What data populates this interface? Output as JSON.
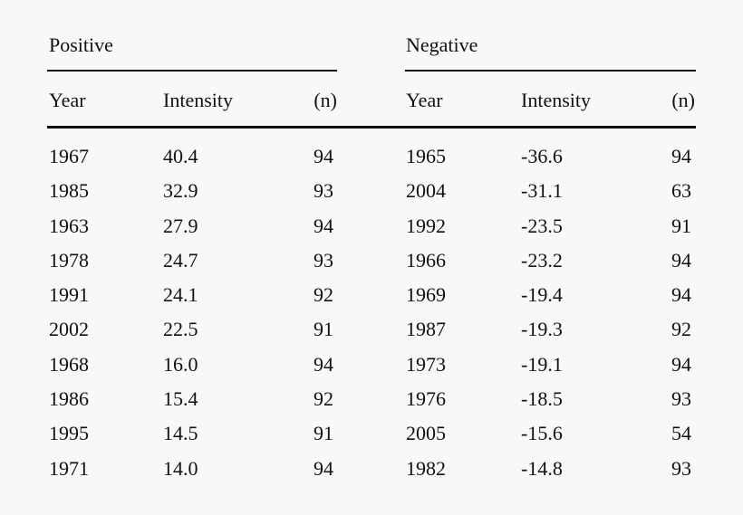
{
  "groups": {
    "positive": "Positive",
    "negative": "Negative"
  },
  "columns": {
    "year": "Year",
    "intensity": "Intensity",
    "n": "(n)"
  },
  "rows": [
    {
      "pos_year": "1967",
      "pos_intensity": "40.4",
      "pos_n": "94",
      "neg_year": "1965",
      "neg_intensity": "-36.6",
      "neg_n": "94"
    },
    {
      "pos_year": "1985",
      "pos_intensity": "32.9",
      "pos_n": "93",
      "neg_year": "2004",
      "neg_intensity": "-31.1",
      "neg_n": "63"
    },
    {
      "pos_year": "1963",
      "pos_intensity": "27.9",
      "pos_n": "94",
      "neg_year": "1992",
      "neg_intensity": "-23.5",
      "neg_n": "91"
    },
    {
      "pos_year": "1978",
      "pos_intensity": "24.7",
      "pos_n": "93",
      "neg_year": "1966",
      "neg_intensity": "-23.2",
      "neg_n": "94"
    },
    {
      "pos_year": "1991",
      "pos_intensity": "24.1",
      "pos_n": "92",
      "neg_year": "1969",
      "neg_intensity": "-19.4",
      "neg_n": "94"
    },
    {
      "pos_year": "2002",
      "pos_intensity": "22.5",
      "pos_n": "91",
      "neg_year": "1987",
      "neg_intensity": "-19.3",
      "neg_n": "92"
    },
    {
      "pos_year": "1968",
      "pos_intensity": "16.0",
      "pos_n": "94",
      "neg_year": "1973",
      "neg_intensity": "-19.1",
      "neg_n": "94"
    },
    {
      "pos_year": "1986",
      "pos_intensity": "15.4",
      "pos_n": "92",
      "neg_year": "1976",
      "neg_intensity": "-18.5",
      "neg_n": "93"
    },
    {
      "pos_year": "1995",
      "pos_intensity": "14.5",
      "pos_n": "91",
      "neg_year": "2005",
      "neg_intensity": "-15.6",
      "neg_n": "54"
    },
    {
      "pos_year": "1971",
      "pos_intensity": "14.0",
      "pos_n": "94",
      "neg_year": "1982",
      "neg_intensity": "-14.8",
      "neg_n": "93"
    }
  ]
}
